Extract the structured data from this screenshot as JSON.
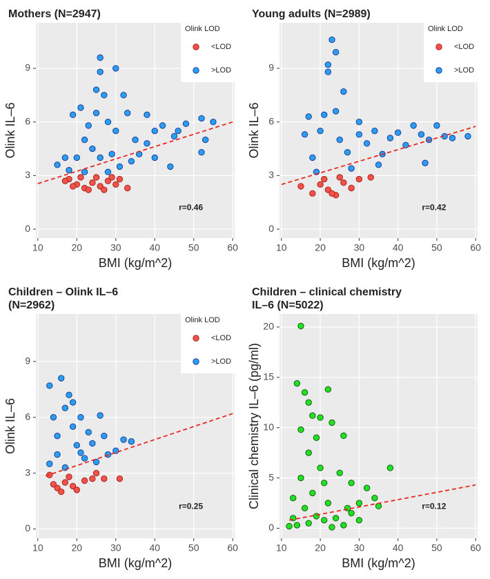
{
  "chart_data": [
    {
      "type": "scatter",
      "title": [
        "Mothers (N=2947)"
      ],
      "xlabel": "BMI (kg/m^2)",
      "ylabel": "Olink IL–6",
      "xlim": [
        9.5,
        60.5
      ],
      "ylim": [
        -0.5,
        11.55
      ],
      "xticks": [
        10,
        20,
        30,
        40,
        50,
        60
      ],
      "yticks": [
        0,
        3,
        6,
        9
      ],
      "grid": true,
      "legend_title": "Olink LOD",
      "legend": "top-right",
      "annotation": "r=0.46",
      "trendline": {
        "color": "#e8281e",
        "x": [
          10,
          60
        ],
        "y": [
          2.55,
          6.0
        ]
      },
      "series": [
        {
          "name": "<LOD",
          "color": "#f2524a",
          "edgecolor": "#a8231c",
          "x": [
            18,
            20,
            22,
            24,
            26,
            28,
            30,
            33,
            21,
            25,
            19,
            23,
            27,
            29,
            31,
            17
          ],
          "y": [
            2.8,
            2.5,
            2.3,
            2.6,
            2.4,
            2.7,
            2.5,
            2.3,
            2.9,
            2.9,
            2.4,
            2.2,
            2.2,
            2.9,
            2.8,
            2.7
          ]
        },
        {
          "name": ">LOD",
          "color": "#2c9ef0",
          "edgecolor": "#1c3f9a",
          "x": [
            15,
            18,
            20,
            22,
            24,
            25,
            26,
            26,
            27,
            25,
            30,
            32,
            28,
            30,
            33,
            35,
            38,
            40,
            42,
            45,
            48,
            52,
            55,
            52,
            44,
            36,
            19,
            21,
            23,
            29,
            34,
            31,
            22,
            17,
            46,
            53,
            38,
            40,
            26,
            28
          ],
          "y": [
            3.6,
            3.3,
            4.0,
            5.0,
            4.5,
            6.5,
            9.6,
            8.8,
            7.5,
            7.8,
            9.0,
            7.5,
            6.0,
            5.5,
            6.5,
            5.0,
            4.8,
            5.5,
            5.8,
            5.2,
            5.9,
            6.2,
            6.0,
            4.3,
            3.5,
            4.2,
            6.4,
            6.8,
            5.8,
            4.2,
            3.8,
            3.5,
            3.2,
            4.0,
            5.5,
            5.0,
            6.4,
            4.0,
            4.0,
            3.2
          ]
        }
      ]
    },
    {
      "type": "scatter",
      "title": [
        "Young adults (N=2989)"
      ],
      "xlabel": "BMI (kg/m^2)",
      "ylabel": "Olink IL–6",
      "xlim": [
        9.5,
        60.5
      ],
      "ylim": [
        -0.5,
        11.55
      ],
      "xticks": [
        10,
        20,
        30,
        40,
        50,
        60
      ],
      "yticks": [
        0,
        3,
        6,
        9
      ],
      "grid": true,
      "legend_title": "Olink LOD",
      "legend": "top-right",
      "annotation": "r=0.42",
      "trendline": {
        "color": "#e8281e",
        "x": [
          10,
          60
        ],
        "y": [
          2.5,
          5.75
        ]
      },
      "series": [
        {
          "name": "<LOD",
          "color": "#f2524a",
          "edgecolor": "#a8231c",
          "x": [
            15,
            18,
            20,
            22,
            24,
            26,
            28,
            30,
            33,
            21,
            25,
            23
          ],
          "y": [
            2.4,
            2.0,
            2.5,
            2.2,
            1.9,
            2.6,
            2.3,
            2.8,
            2.9,
            2.8,
            2.9,
            2.0
          ]
        },
        {
          "name": ">LOD",
          "color": "#2c9ef0",
          "edgecolor": "#1c3f9a",
          "x": [
            16,
            18,
            20,
            21,
            22,
            22,
            23,
            24,
            26,
            24,
            25,
            27,
            28,
            30,
            32,
            34,
            36,
            38,
            40,
            42,
            44,
            46,
            47,
            50,
            52,
            54,
            58,
            19,
            35,
            48,
            30,
            17
          ],
          "y": [
            5.3,
            4.0,
            5.5,
            6.4,
            8.8,
            9.2,
            10.6,
            9.9,
            7.7,
            6.6,
            5.0,
            4.3,
            3.4,
            5.3,
            4.8,
            5.5,
            4.2,
            5.1,
            5.4,
            4.7,
            5.8,
            5.3,
            3.7,
            5.8,
            5.2,
            5.1,
            5.2,
            3.2,
            3.6,
            5.0,
            6.0,
            6.3
          ]
        }
      ]
    },
    {
      "type": "scatter",
      "title": [
        "Children – Olink IL–6",
        "(N=2962)"
      ],
      "xlabel": "BMI (kg/m^2)",
      "ylabel": "Olink IL–6",
      "xlim": [
        9.5,
        60.5
      ],
      "ylim": [
        -0.5,
        11.55
      ],
      "xticks": [
        10,
        20,
        30,
        40,
        50,
        60
      ],
      "yticks": [
        0,
        3,
        6,
        9
      ],
      "grid": true,
      "legend_title": "Olink LOD",
      "legend": "top-right",
      "annotation": "r=0.25",
      "trendline": {
        "color": "#e8281e",
        "x": [
          12,
          60
        ],
        "y": [
          2.85,
          6.2
        ]
      },
      "series": [
        {
          "name": "<LOD",
          "color": "#f2524a",
          "edgecolor": "#a8231c",
          "x": [
            13,
            14,
            15,
            16,
            17,
            18,
            19,
            20,
            22,
            24,
            27,
            31,
            25
          ],
          "y": [
            2.9,
            2.4,
            2.2,
            2.0,
            2.5,
            2.8,
            2.3,
            2.1,
            2.6,
            2.7,
            2.7,
            2.7,
            3.0
          ]
        },
        {
          "name": ">LOD",
          "color": "#2c9ef0",
          "edgecolor": "#1c3f9a",
          "x": [
            13,
            14,
            15,
            16,
            17,
            18,
            19,
            20,
            21,
            22,
            23,
            24,
            26,
            28,
            30,
            32,
            34,
            13,
            15,
            17,
            19,
            21,
            25,
            27
          ],
          "y": [
            7.7,
            6.0,
            5.0,
            8.1,
            6.5,
            7.2,
            5.5,
            4.5,
            6.0,
            3.8,
            5.2,
            4.6,
            6.1,
            4.0,
            4.2,
            4.8,
            4.7,
            3.5,
            4.0,
            3.3,
            6.8,
            4.1,
            3.6,
            5.0
          ]
        }
      ]
    },
    {
      "type": "scatter",
      "title": [
        "Children – clinical chemistry",
        " IL–6 (N=5022)"
      ],
      "xlabel": "BMI (kg/m^2)",
      "ylabel": "Clinical chemistry IL–6 (pg/ml)",
      "xlim": [
        9.5,
        60.5
      ],
      "ylim": [
        -1,
        21.3
      ],
      "xticks": [
        10,
        20,
        30,
        40,
        50,
        60
      ],
      "yticks": [
        0,
        5,
        10,
        15,
        20
      ],
      "grid": true,
      "annotation": "r=0.12",
      "trendline": {
        "color": "#e8281e",
        "x": [
          12,
          60
        ],
        "y": [
          0.8,
          4.3
        ]
      },
      "series": [
        {
          "color": "#22e022",
          "edgecolor": "#136313",
          "x": [
            15,
            14,
            16,
            17,
            18,
            20,
            22,
            19,
            23,
            25,
            26,
            28,
            30,
            32,
            34,
            35,
            38,
            13,
            14,
            15,
            16,
            17,
            18,
            19,
            20,
            21,
            22,
            24,
            26,
            28,
            12,
            13,
            17,
            15,
            21,
            23,
            27,
            30
          ],
          "y": [
            20.1,
            14.4,
            13.5,
            12.5,
            11.2,
            11.0,
            13.8,
            9.0,
            10.5,
            5.5,
            9.2,
            4.5,
            2.5,
            4.0,
            3.0,
            2.2,
            6.0,
            1.0,
            0.3,
            5.0,
            2.0,
            0.5,
            3.5,
            1.2,
            6.0,
            0.8,
            2.5,
            1.0,
            0.3,
            1.5,
            0.2,
            3.0,
            7.5,
            9.8,
            4.5,
            0.1,
            2.0,
            0.8
          ]
        }
      ]
    }
  ]
}
